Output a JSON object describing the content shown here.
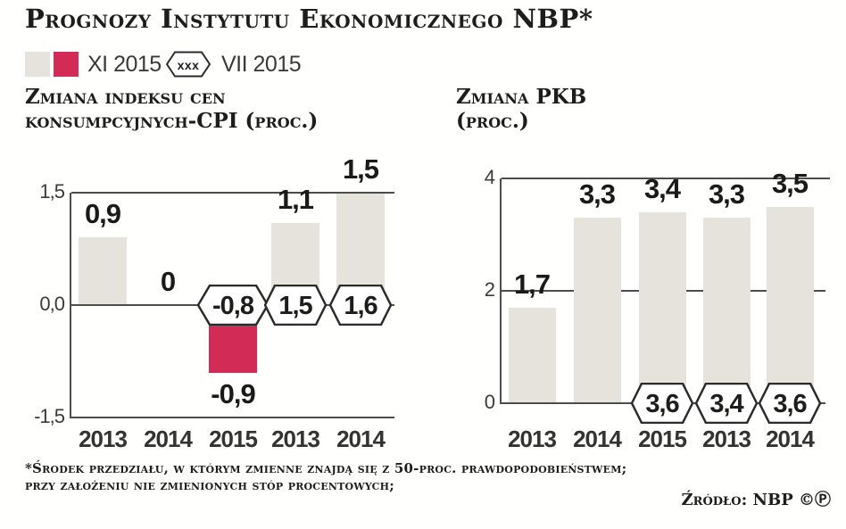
{
  "header": {
    "title": "Prognozy Instytutu Ekonomicznego NBP*"
  },
  "legend": {
    "xi_2015": "XI 2015",
    "vii_2015": "VII 2015",
    "hex_symbol": "xxx"
  },
  "footer": {
    "footnote_line1": "*Środek przedziału, w którym zmienne znajdą się z 50-proc. prawdopodobieństwem;",
    "footnote_line2": "przy założeniu nie zmienionych stóp procentowych;",
    "source": "Źródło: NBP ©Ⓟ"
  },
  "colors": {
    "bar_fill": "#e5e3db",
    "bar_negative": "#d22b55",
    "axis": "#4d4d4d",
    "hex_stroke": "#2b2b2b",
    "text_dark": "#1d1d1b"
  },
  "chart_data": [
    {
      "type": "bar",
      "title": "Zmiana indeksu cen konsumpcyjnych-CPI (proc.)",
      "title_lines": [
        "Zmiana indeksu cen",
        "konsumpcyjnych-CPI (proc.)"
      ],
      "categories": [
        "2013",
        "2014",
        "2015",
        "2013",
        "2014"
      ],
      "series": [
        {
          "name": "XI 2015",
          "marker": "bar",
          "values": [
            0.9,
            0,
            -0.9,
            1.1,
            1.5
          ],
          "labels": [
            "0,9",
            "0",
            "-0,9",
            "1,1",
            "1,5"
          ],
          "fills": [
            "beige",
            "beige",
            "negative",
            "beige",
            "beige"
          ]
        },
        {
          "name": "VII 2015",
          "marker": "hexagon",
          "values": [
            null,
            null,
            -0.8,
            1.5,
            1.6
          ],
          "labels": [
            "",
            "",
            "-0,8",
            "1,5",
            "1,6"
          ]
        }
      ],
      "ylim": [
        -1.5,
        1.5
      ],
      "yticks": [
        {
          "v": 1.5,
          "label": "1,5"
        },
        {
          "v": 0,
          "label": "0,0"
        },
        {
          "v": -1.5,
          "label": "-1,5"
        }
      ],
      "grid": "horizontal",
      "legend_position": "top"
    },
    {
      "type": "bar",
      "title": "Zmiana PKB (proc.)",
      "title_lines": [
        "Zmiana PKB",
        "(proc.)"
      ],
      "categories": [
        "2013",
        "2014",
        "2015",
        "2013",
        "2014"
      ],
      "series": [
        {
          "name": "XI 2015",
          "marker": "bar",
          "values": [
            1.7,
            3.3,
            3.4,
            3.3,
            3.5
          ],
          "labels": [
            "1,7",
            "3,3",
            "3,4",
            "3,3",
            "3,5"
          ],
          "fills": [
            "beige",
            "beige",
            "beige",
            "beige",
            "beige"
          ]
        },
        {
          "name": "VII 2015",
          "marker": "hexagon",
          "values": [
            null,
            null,
            3.6,
            3.4,
            3.6
          ],
          "labels": [
            "",
            "",
            "3,6",
            "3,4",
            "3,6"
          ]
        }
      ],
      "ylim": [
        0,
        4
      ],
      "yticks": [
        {
          "v": 4,
          "label": "4"
        },
        {
          "v": 2,
          "label": "2"
        },
        {
          "v": 0,
          "label": "0"
        }
      ],
      "grid": "horizontal",
      "legend_position": "top"
    }
  ]
}
